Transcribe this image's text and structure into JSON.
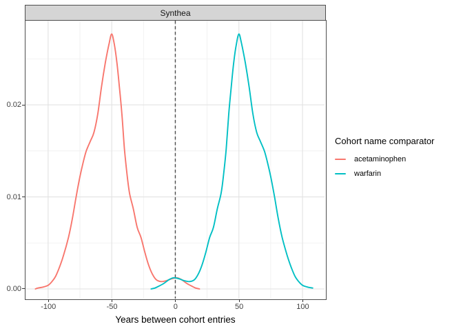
{
  "facet": {
    "label": "Synthea"
  },
  "legend": {
    "title": "Cohort name comparator",
    "items": [
      {
        "label": "acetaminophen",
        "color": "#F8766D"
      },
      {
        "label": "warfarin",
        "color": "#00BFC4"
      }
    ]
  },
  "chart_data": {
    "type": "line",
    "title": "Synthea",
    "xlabel": "Years between cohort entries",
    "ylabel": "",
    "xlim": [
      -117.8,
      117.3
    ],
    "ylim": [
      -0.00105,
      0.02915
    ],
    "grid": true,
    "legend_position": "right",
    "x_ticks": {
      "values": [
        -100,
        -50,
        0,
        50,
        100
      ],
      "labels": [
        "-100",
        "-50",
        "0",
        "50",
        "100"
      ]
    },
    "x_minor_ticks": [
      -75,
      -25,
      25,
      75
    ],
    "y_ticks": {
      "values": [
        0,
        0.01,
        0.02
      ],
      "labels": [
        "0.00",
        "0.01",
        "0.02"
      ]
    },
    "y_minor_ticks": [
      0.005,
      0.015,
      0.025
    ],
    "reference_line": {
      "x": 0,
      "style": "dashed",
      "color": "#4D4D4D"
    },
    "series": [
      {
        "name": "acetaminophen",
        "color": "#F8766D",
        "points": [
          [
            -110,
            0.0
          ],
          [
            -108,
            0.0001
          ],
          [
            -104,
            0.0002
          ],
          [
            -100,
            0.0004
          ],
          [
            -97,
            0.0008
          ],
          [
            -94,
            0.0014
          ],
          [
            -91,
            0.0024
          ],
          [
            -88,
            0.0036
          ],
          [
            -84,
            0.0056
          ],
          [
            -81,
            0.0076
          ],
          [
            -78,
            0.01
          ],
          [
            -75,
            0.0122
          ],
          [
            -72,
            0.014
          ],
          [
            -70,
            0.015
          ],
          [
            -67,
            0.016
          ],
          [
            -64,
            0.017
          ],
          [
            -61,
            0.019
          ],
          [
            -58,
            0.022
          ],
          [
            -55,
            0.0246
          ],
          [
            -52,
            0.0267
          ],
          [
            -50,
            0.0277
          ],
          [
            -48,
            0.0266
          ],
          [
            -46,
            0.0247
          ],
          [
            -44,
            0.022
          ],
          [
            -42,
            0.019
          ],
          [
            -40,
            0.0152
          ],
          [
            -38,
            0.0125
          ],
          [
            -36,
            0.0104
          ],
          [
            -33,
            0.0087
          ],
          [
            -30,
            0.0067
          ],
          [
            -27,
            0.0056
          ],
          [
            -24,
            0.004
          ],
          [
            -21,
            0.0026
          ],
          [
            -18,
            0.0016
          ],
          [
            -15,
            0.001
          ],
          [
            -11,
            0.0008
          ],
          [
            -7,
            0.0009
          ],
          [
            -3,
            0.0011
          ],
          [
            0,
            0.0012
          ],
          [
            2,
            0.0012
          ],
          [
            5,
            0.001
          ],
          [
            9,
            0.0006
          ],
          [
            13,
            0.0003
          ],
          [
            16,
            0.0001
          ],
          [
            19,
            0.0
          ]
        ]
      },
      {
        "name": "warfarin",
        "color": "#00BFC4",
        "points": [
          [
            -19,
            0.0
          ],
          [
            -16,
            0.0001
          ],
          [
            -13,
            0.0003
          ],
          [
            -9,
            0.0006
          ],
          [
            -5,
            0.001
          ],
          [
            -2,
            0.0012
          ],
          [
            0,
            0.0012
          ],
          [
            3,
            0.0011
          ],
          [
            7,
            0.0009
          ],
          [
            11,
            0.0008
          ],
          [
            15,
            0.001
          ],
          [
            18,
            0.0016
          ],
          [
            21,
            0.0026
          ],
          [
            24,
            0.004
          ],
          [
            27,
            0.0056
          ],
          [
            30,
            0.0067
          ],
          [
            33,
            0.0087
          ],
          [
            36,
            0.0104
          ],
          [
            38,
            0.0125
          ],
          [
            40,
            0.0152
          ],
          [
            42,
            0.019
          ],
          [
            44,
            0.022
          ],
          [
            46,
            0.0247
          ],
          [
            48,
            0.0266
          ],
          [
            50,
            0.0277
          ],
          [
            52,
            0.0267
          ],
          [
            55,
            0.0246
          ],
          [
            58,
            0.022
          ],
          [
            61,
            0.019
          ],
          [
            64,
            0.017
          ],
          [
            67,
            0.016
          ],
          [
            70,
            0.015
          ],
          [
            72,
            0.014
          ],
          [
            75,
            0.0122
          ],
          [
            78,
            0.01
          ],
          [
            81,
            0.0076
          ],
          [
            84,
            0.0056
          ],
          [
            88,
            0.0036
          ],
          [
            91,
            0.0024
          ],
          [
            94,
            0.0014
          ],
          [
            97,
            0.0008
          ],
          [
            100,
            0.0004
          ],
          [
            104,
            0.0002
          ],
          [
            108,
            0.0001
          ]
        ]
      }
    ]
  }
}
